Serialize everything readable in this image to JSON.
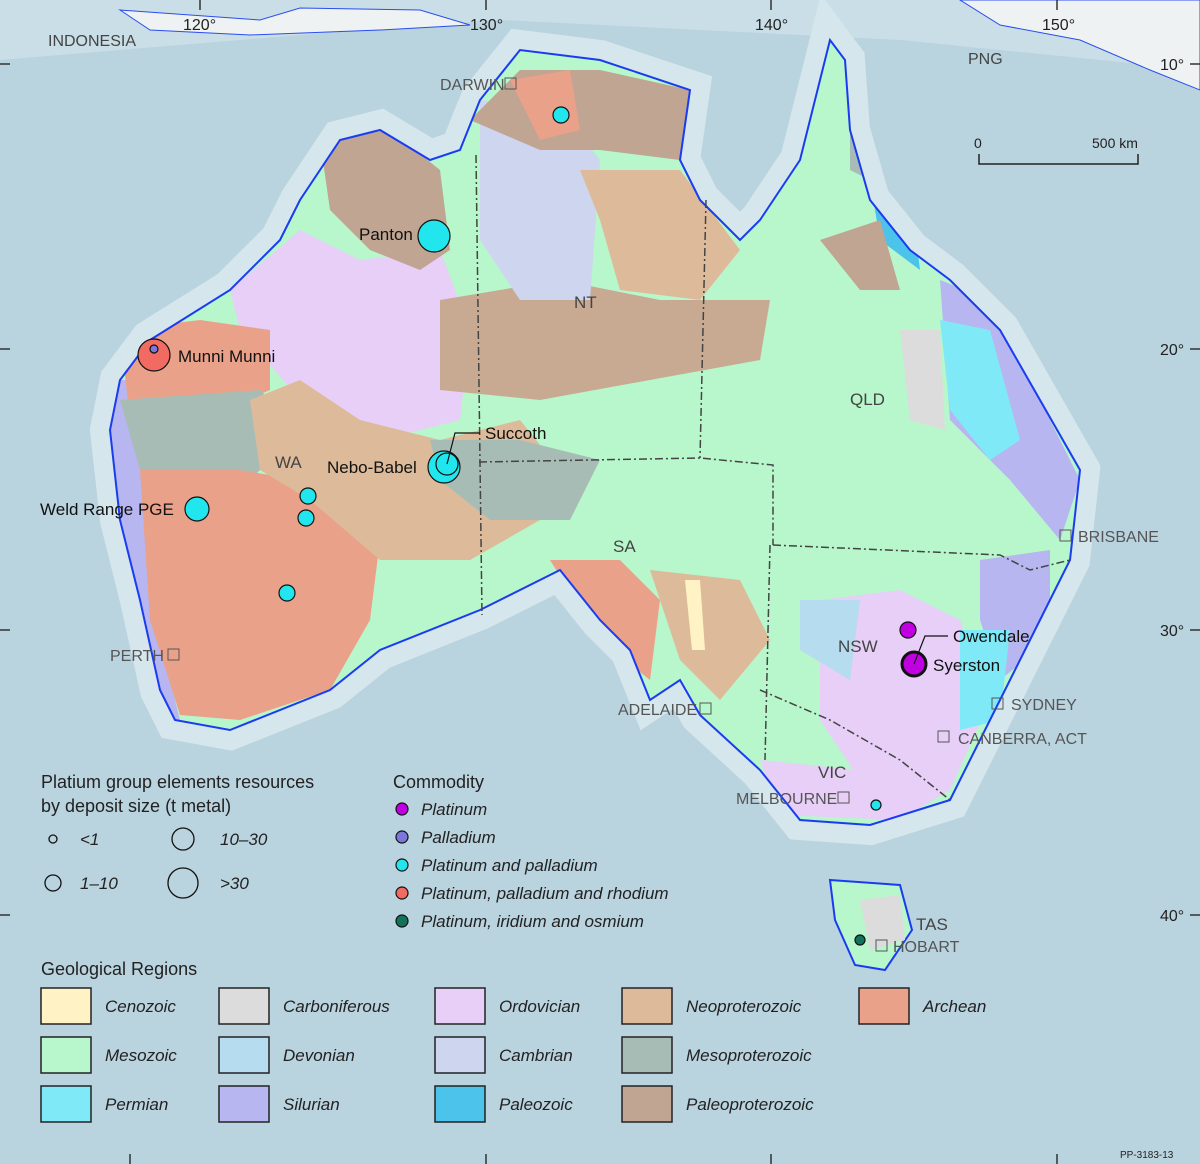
{
  "map": {
    "graticule": {
      "longitudes": [
        "120°",
        "130°",
        "140°",
        "150°"
      ],
      "latitudes": [
        "10°",
        "20°",
        "30°",
        "40°"
      ]
    },
    "countries": {
      "indonesia": "INDONESIA",
      "png": "PNG"
    },
    "states": {
      "nt": "NT",
      "wa": "WA",
      "sa": "SA",
      "qld": "QLD",
      "nsw": "NSW",
      "vic": "VIC",
      "tas": "TAS"
    },
    "cities": {
      "darwin": "DARWIN",
      "perth": "PERTH",
      "adelaide": "ADELAIDE",
      "melbourne": "MELBOURNE",
      "hobart": "HOBART",
      "sydney": "SYDNEY",
      "canberra": "CANBERRA, ACT",
      "brisbane": "BRISBANE"
    },
    "scale_bar": {
      "start": "0",
      "end": "500 km"
    },
    "deposits": [
      {
        "name": "Panton",
        "commodity": "Platinum and palladium",
        "size": ">30"
      },
      {
        "name": "Munni Munni",
        "commodity": "Platinum, palladium and rhodium",
        "size": ">30"
      },
      {
        "name": "Succoth",
        "commodity": "Platinum and palladium",
        "size": "10–30"
      },
      {
        "name": "Nebo-Babel",
        "commodity": "Platinum and palladium",
        "size": ">30"
      },
      {
        "name": "Weld Range PGE",
        "commodity": "Platinum and palladium",
        "size": "10–30"
      },
      {
        "name": "Owendale",
        "commodity": "Platinum",
        "size": "1–10"
      },
      {
        "name": "Syerston",
        "commodity": "Platinum",
        "size": ">30"
      }
    ],
    "figure_id": "PP-3183-13"
  },
  "size_legend": {
    "title_line1": "Platium group elements resources",
    "title_line2": "by deposit size (t metal)",
    "items": [
      "<1",
      "1–10",
      "10–30",
      ">30"
    ]
  },
  "commodity_legend": {
    "title": "Commodity",
    "items": [
      {
        "label": "Platinum",
        "color": "#c000e0"
      },
      {
        "label": "Palladium",
        "color": "#7b78dc"
      },
      {
        "label": "Platinum and palladium",
        "color": "#22e6ee"
      },
      {
        "label": "Platinum, palladium and rhodium",
        "color": "#f26b63"
      },
      {
        "label": "Platinum, iridium and osmium",
        "color": "#13735a"
      }
    ]
  },
  "geology_legend": {
    "title": "Geological Regions",
    "items": [
      {
        "label": "Cenozoic",
        "color": "#fff3c6"
      },
      {
        "label": "Mesozoic",
        "color": "#b8f6cb"
      },
      {
        "label": "Permian",
        "color": "#80e9f7"
      },
      {
        "label": "Carboniferous",
        "color": "#dcdcdc"
      },
      {
        "label": "Devonian",
        "color": "#b5dcef"
      },
      {
        "label": "Silurian",
        "color": "#b7b6f0"
      },
      {
        "label": "Ordovician",
        "color": "#e7cff8"
      },
      {
        "label": "Cambrian",
        "color": "#cdd5ef"
      },
      {
        "label": "Paleozoic",
        "color": "#4cc3ea"
      },
      {
        "label": "Neoproterozoic",
        "color": "#ddbb9a"
      },
      {
        "label": "Mesoproterozoic",
        "color": "#a8bcb6"
      },
      {
        "label": "Paleoproterozoic",
        "color": "#bfa592"
      },
      {
        "label": "Archean",
        "color": "#e9a18a"
      }
    ]
  }
}
